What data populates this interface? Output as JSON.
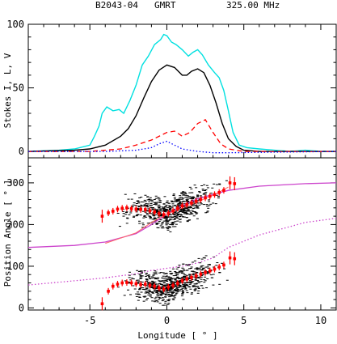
{
  "header": {
    "pulsar": "B2043-04",
    "telescope": "GMRT",
    "frequency": "325.00 MHz"
  },
  "chart_data": [
    {
      "type": "line",
      "ylabel": "Stokes I, L, V",
      "xlim": [
        -9,
        11
      ],
      "ylim": [
        -5,
        100
      ],
      "xticks": [
        "-5",
        "0",
        "5",
        "10"
      ],
      "yticks": [
        "0",
        "50",
        "100"
      ],
      "series": [
        {
          "style": "solid",
          "color": "#00e0e0",
          "x": [
            -9,
            -7,
            -6,
            -5,
            -4.7,
            -4.4,
            -4.2,
            -3.9,
            -3.5,
            -3.1,
            -2.8,
            -2.4,
            -2,
            -1.6,
            -1.2,
            -0.8,
            -0.4,
            -0.2,
            0,
            0.3,
            0.6,
            1,
            1.4,
            1.7,
            2,
            2.3,
            2.7,
            3.1,
            3.4,
            3.7,
            4,
            4.3,
            4.7,
            5.2,
            6,
            7,
            8,
            9,
            10,
            11
          ],
          "y": [
            0,
            1,
            2,
            5,
            12,
            20,
            30,
            35,
            32,
            33,
            30,
            40,
            52,
            68,
            75,
            84,
            88,
            92,
            91,
            86,
            84,
            80,
            75,
            78,
            80,
            76,
            68,
            62,
            58,
            48,
            32,
            15,
            5,
            3,
            2,
            1,
            0,
            1,
            0,
            0
          ]
        },
        {
          "style": "solid",
          "color": "#000000",
          "x": [
            -9,
            -6,
            -5,
            -4,
            -3,
            -2.5,
            -2,
            -1.5,
            -1,
            -0.5,
            0,
            0.5,
            1,
            1.3,
            1.6,
            2,
            2.4,
            2.8,
            3.2,
            3.6,
            4,
            4.5,
            5,
            6,
            8,
            11
          ],
          "y": [
            0,
            1,
            2,
            5,
            12,
            18,
            28,
            42,
            55,
            64,
            68,
            66,
            60,
            60,
            63,
            65,
            62,
            52,
            38,
            22,
            10,
            4,
            1,
            0,
            0,
            0
          ]
        },
        {
          "style": "dashed",
          "color": "#ff0000",
          "x": [
            -9,
            -5,
            -3,
            -2,
            -1,
            0,
            0.5,
            1,
            1.5,
            2,
            2.5,
            3,
            3.5,
            4,
            5,
            11
          ],
          "y": [
            0,
            0,
            2,
            5,
            9,
            15,
            16,
            12,
            15,
            22,
            25,
            15,
            6,
            2,
            0,
            0
          ]
        },
        {
          "style": "dotted",
          "color": "#0000ff",
          "x": [
            -9,
            -4,
            -2,
            -1,
            -0.5,
            0,
            0.5,
            1,
            2,
            3,
            4,
            11
          ],
          "y": [
            0,
            0,
            1,
            3,
            6,
            8,
            5,
            2,
            0,
            -1,
            -1,
            0
          ]
        }
      ]
    },
    {
      "type": "scatter",
      "xlabel": "Longitude [ ° ]",
      "ylabel": "Position Angle [ ° ]",
      "xlim": [
        -9,
        11
      ],
      "ylim": [
        -5,
        360
      ],
      "xticks": [
        "-5",
        "0",
        "5",
        "10"
      ],
      "yticks": [
        "0",
        "100",
        "200",
        "300"
      ],
      "pa_points_upper": {
        "x": [
          -4.2,
          -3.8,
          -3.5,
          -3.2,
          -2.9,
          -2.6,
          -2.3,
          -2.0,
          -1.7,
          -1.4,
          -1.1,
          -0.8,
          -0.5,
          -0.2,
          0.1,
          0.4,
          0.7,
          1.0,
          1.3,
          1.6,
          1.9,
          2.2,
          2.5,
          2.8,
          3.1,
          3.4,
          3.7,
          4.1,
          4.4
        ],
        "y": [
          220,
          228,
          232,
          237,
          239,
          240,
          238,
          237,
          236,
          236,
          233,
          230,
          226,
          224,
          227,
          233,
          239,
          245,
          248,
          252,
          256,
          260,
          264,
          268,
          272,
          277,
          282,
          300,
          298
        ]
      },
      "pa_points_lower": {
        "x": [
          -4.2,
          -3.8,
          -3.5,
          -3.2,
          -2.9,
          -2.6,
          -2.3,
          -2.0,
          -1.7,
          -1.4,
          -1.1,
          -0.8,
          -0.5,
          -0.2,
          0.1,
          0.4,
          0.7,
          1.0,
          1.3,
          1.6,
          1.9,
          2.2,
          2.5,
          2.8,
          3.1,
          3.4,
          3.7,
          4.1,
          4.4
        ],
        "y": [
          10,
          40,
          52,
          57,
          60,
          61,
          60,
          58,
          56,
          57,
          54,
          52,
          48,
          45,
          50,
          54,
          59,
          65,
          69,
          73,
          77,
          81,
          85,
          89,
          93,
          98,
          103,
          120,
          118
        ]
      },
      "rvm_fits": [
        {
          "color": "#cc44cc",
          "style": "dotted",
          "x": [
            -9,
            -6,
            -4,
            -2,
            -1,
            0,
            1,
            2,
            3,
            4,
            6,
            9,
            11
          ],
          "y": [
            145,
            150,
            158,
            178,
            200,
            225,
            245,
            262,
            272,
            282,
            292,
            298,
            300
          ]
        },
        {
          "color": "#cc44cc",
          "style": "dotted",
          "x": [
            -9,
            -6,
            -4,
            -2,
            -1,
            0,
            1,
            2,
            3,
            4,
            6,
            9,
            11
          ],
          "y": [
            55,
            65,
            72,
            82,
            90,
            95,
            100,
            108,
            120,
            145,
            175,
            205,
            215
          ]
        }
      ],
      "solid_fit": {
        "color": "#ff6666",
        "x": [
          -4,
          -2,
          -1,
          0,
          1,
          2,
          3,
          4
        ],
        "y": [
          155,
          180,
          205,
          225,
          240,
          255,
          270,
          290
        ]
      }
    }
  ]
}
